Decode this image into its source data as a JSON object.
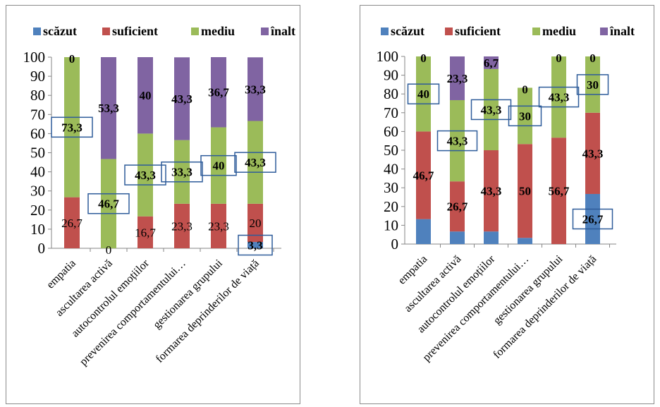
{
  "chart_data": [
    {
      "type": "bar",
      "stacked": true,
      "categories": [
        "empatia",
        "ascultarea  activă",
        "autocontrolul emoțiilor",
        "prevenirea comportamentului…",
        "gestionarea grupului",
        "formarea deprinderilor de viață"
      ],
      "series": [
        {
          "name": "scăzut",
          "color": "#4f81bd",
          "values": [
            0,
            0,
            0,
            0,
            0,
            3.3
          ],
          "labels": [
            "",
            "0",
            "",
            "",
            "",
            "3,3"
          ]
        },
        {
          "name": "suficient",
          "color": "#c0504d",
          "values": [
            26.7,
            0,
            16.7,
            23.3,
            23.3,
            20
          ],
          "labels": [
            "26,7",
            "",
            "16,7",
            "23,3",
            "23,3",
            "20"
          ]
        },
        {
          "name": "mediu",
          "color": "#9bbb59",
          "values": [
            73.3,
            46.7,
            43.3,
            33.3,
            40,
            43.3
          ],
          "labels": [
            "73,3",
            "46,7",
            "43,3",
            "33,3",
            "40",
            "43,3"
          ]
        },
        {
          "name": "înalt",
          "color": "#8064a2",
          "values": [
            0,
            53.3,
            40,
            43.3,
            36.7,
            33.3
          ],
          "labels": [
            "0",
            "53,3",
            "40",
            "43,3",
            "36,7",
            "33,3"
          ]
        }
      ],
      "ylim": [
        0,
        100
      ],
      "yticks": [
        "0",
        "10",
        "20",
        "30",
        "40",
        "50",
        "60",
        "70",
        "80",
        "90",
        "100"
      ],
      "legend_position": "top",
      "grid": false
    },
    {
      "type": "bar",
      "stacked": true,
      "categories": [
        "empatia",
        "ascultarea  activă",
        "autocontrolul emoțiilor",
        "prevenirea comportamentului…",
        "gestionarea grupului",
        "formarea deprinderilor de viață"
      ],
      "series": [
        {
          "name": "scăzut",
          "color": "#4f81bd",
          "values": [
            13.3,
            6.7,
            6.7,
            3.3,
            0,
            26.7
          ],
          "labels": [
            "",
            "",
            "",
            "",
            "",
            "26,7"
          ]
        },
        {
          "name": "suficient",
          "color": "#c0504d",
          "values": [
            46.7,
            26.7,
            43.3,
            50,
            56.7,
            43.3
          ],
          "labels": [
            "46,7",
            "26,7",
            "43,3",
            "50",
            "56,7",
            "43,3"
          ]
        },
        {
          "name": "mediu",
          "color": "#9bbb59",
          "values": [
            40,
            43.3,
            43.3,
            30,
            43.3,
            30
          ],
          "labels": [
            "40",
            "43,3",
            "43,3",
            "30",
            "43,3",
            "30"
          ]
        },
        {
          "name": "înalt",
          "color": "#8064a2",
          "values": [
            0,
            23.3,
            6.7,
            0,
            0,
            0
          ],
          "labels": [
            "0",
            "23,3",
            "6,7",
            "0",
            "0",
            "0"
          ]
        }
      ],
      "ylim": [
        0,
        100
      ],
      "yticks": [
        "0",
        "10",
        "20",
        "30",
        "40",
        "50",
        "60",
        "70",
        "80",
        "90",
        "100"
      ],
      "legend_position": "top",
      "grid": false
    }
  ]
}
